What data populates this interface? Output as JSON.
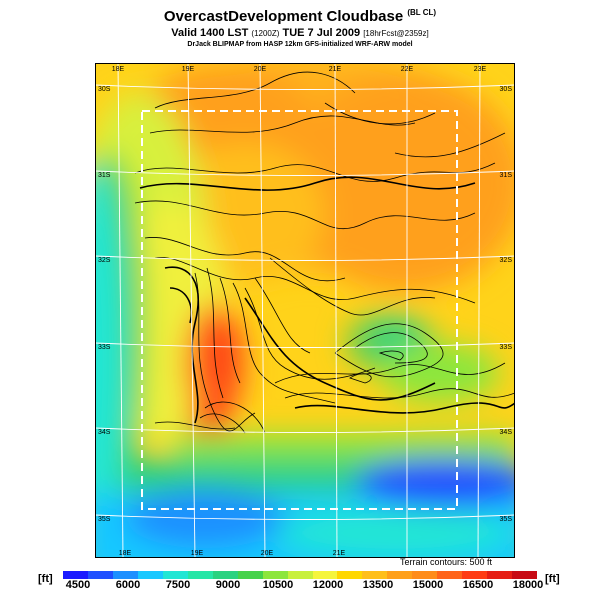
{
  "title": {
    "main": "OvercastDevelopment Cloudbase",
    "main_suffix": "(BL CL)",
    "valid": "Valid 1400 LST",
    "valid_code": "(1200Z)",
    "valid_date": "TUE 7 Jul 2009",
    "valid_extra": "[18hrFcst@2359z]",
    "credit": "DrJack BLIPMAP from HASP 12km GFS-initialized WRF-ARW model"
  },
  "top_ticks": [
    "18E",
    "19E",
    "20E",
    "21E",
    "22E",
    "23E"
  ],
  "bottom_ticks": [
    "18E",
    "19E",
    "20E",
    "21E"
  ],
  "left_ticks": [
    "30S",
    "31S",
    "32S",
    "33S",
    "34S",
    "35S"
  ],
  "right_ticks": [
    "30S",
    "31S",
    "32S",
    "33S",
    "34S",
    "35S"
  ],
  "terrain_note": "Terrain contours: 500 ft",
  "unit_left": "[ft]",
  "unit_right": "[ft]",
  "colorbar": {
    "labels": [
      "4500",
      "6000",
      "7500",
      "9000",
      "10500",
      "12000",
      "13500",
      "15000",
      "16500",
      "18000"
    ],
    "colors": [
      "#1a1aff",
      "#2050ff",
      "#1e90ff",
      "#19c8ff",
      "#22e6d4",
      "#26e6a6",
      "#2ad280",
      "#45d24a",
      "#8ce63c",
      "#c8f03c",
      "#f5f53c",
      "#ffd700",
      "#ffbf1a",
      "#ffa01a",
      "#ff8c1a",
      "#ff641a",
      "#ff3c14",
      "#e61e14",
      "#c80a14"
    ]
  }
}
